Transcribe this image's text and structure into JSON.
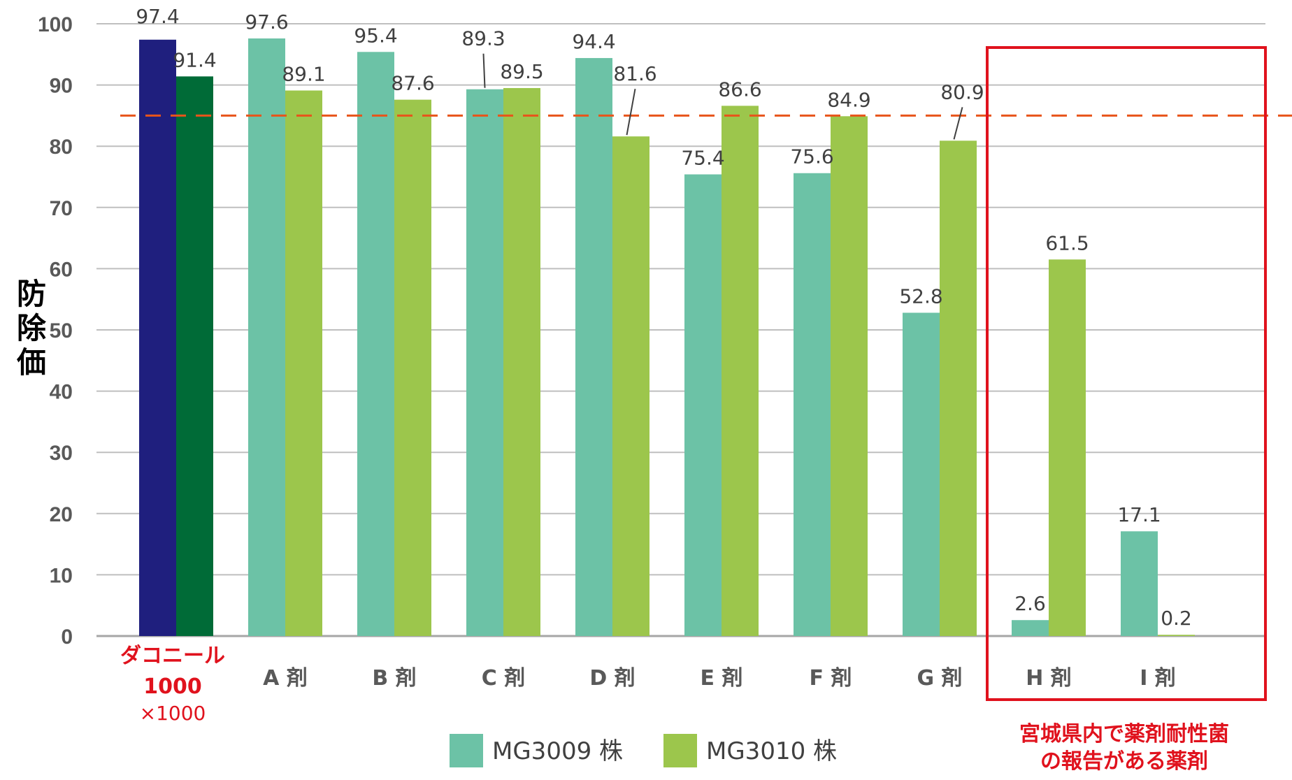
{
  "chart_data": {
    "type": "bar",
    "ylabel": "防除価",
    "ylim": [
      0,
      100
    ],
    "yticks": [
      0,
      10,
      20,
      30,
      40,
      50,
      60,
      70,
      80,
      90,
      100
    ],
    "reference_line": 85,
    "reference_line_color": "#e8541a",
    "control": {
      "label_line1": "ダコニール",
      "label_line2": "1000",
      "label_line3": "×1000",
      "values": [
        97.4,
        91.4
      ],
      "colors": [
        "#1f1f7e",
        "#006b37"
      ]
    },
    "categories": [
      "A 剤",
      "B 剤",
      "C 剤",
      "D 剤",
      "E 剤",
      "F 剤",
      "G 剤",
      "H 剤",
      "I 剤"
    ],
    "series": [
      {
        "name": "MG3009 株",
        "color": "#6cc2a6",
        "values": [
          97.6,
          95.4,
          89.3,
          94.4,
          75.4,
          75.6,
          52.8,
          2.6,
          17.1
        ]
      },
      {
        "name": "MG3010 株",
        "color": "#9cc64c",
        "values": [
          89.1,
          87.6,
          89.5,
          81.6,
          86.6,
          84.9,
          80.9,
          61.5,
          0.2
        ]
      }
    ],
    "legend_position": "bottom",
    "highlight_note_line1": "宮城県内で薬剤耐性菌",
    "highlight_note_line2": "の報告がある薬剤",
    "highlight_color": "#e0121d"
  }
}
